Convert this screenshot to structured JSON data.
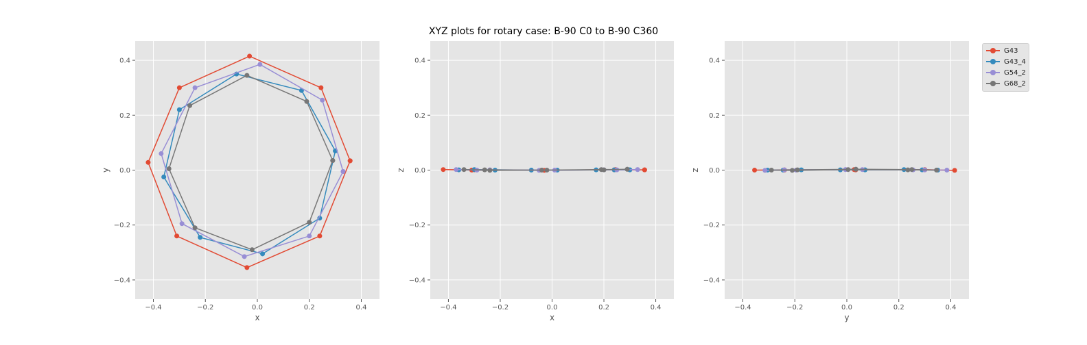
{
  "suptitle": "XYZ plots for rotary case: B-90 C0 to B-90 C360",
  "colors": {
    "G43": "#E24A33",
    "G43_4": "#348ABD",
    "G54_2": "#988ED5",
    "G68_2": "#777777"
  },
  "legend": {
    "placement": "upper right, outside plots",
    "items": [
      {
        "label": "G43",
        "color": "#E24A33"
      },
      {
        "label": "G43_4",
        "color": "#348ABD"
      },
      {
        "label": "G54_2",
        "color": "#988ED5"
      },
      {
        "label": "G68_2",
        "color": "#777777"
      }
    ]
  },
  "chart_data": [
    {
      "type": "line",
      "xlabel": "x",
      "ylabel": "y",
      "xlim": [
        -0.47,
        0.47
      ],
      "ylim": [
        -0.47,
        0.47
      ],
      "xticks": [
        "-0.4",
        "-0.2",
        "0.0",
        "0.2",
        "0.4"
      ],
      "yticks": [
        "-0.4",
        "-0.2",
        "0.0",
        "0.2",
        "0.4"
      ],
      "grid": true,
      "series": [
        {
          "name": "G43",
          "x": [
            0.357,
            0.245,
            -0.03,
            -0.3,
            -0.42,
            -0.31,
            -0.04,
            0.24,
            0.357
          ],
          "y": [
            0.034,
            0.3,
            0.415,
            0.3,
            0.028,
            -0.24,
            -0.355,
            -0.24,
            0.034
          ]
        },
        {
          "name": "G43_4",
          "x": [
            0.3,
            0.17,
            -0.08,
            -0.3,
            -0.36,
            -0.22,
            0.02,
            0.24,
            0.3
          ],
          "y": [
            0.07,
            0.29,
            0.35,
            0.22,
            -0.025,
            -0.245,
            -0.305,
            -0.175,
            0.07
          ]
        },
        {
          "name": "G54_2",
          "x": [
            0.33,
            0.25,
            0.01,
            -0.24,
            -0.37,
            -0.29,
            -0.05,
            0.2,
            0.33
          ],
          "y": [
            -0.005,
            0.255,
            0.385,
            0.3,
            0.06,
            -0.195,
            -0.315,
            -0.24,
            -0.005
          ]
        },
        {
          "name": "G68_2",
          "x": [
            0.29,
            0.19,
            -0.04,
            -0.26,
            -0.34,
            -0.24,
            -0.02,
            0.2,
            0.29
          ],
          "y": [
            0.035,
            0.25,
            0.345,
            0.235,
            0.005,
            -0.21,
            -0.29,
            -0.19,
            0.035
          ]
        }
      ]
    },
    {
      "type": "line",
      "xlabel": "x",
      "ylabel": "z",
      "xlim": [
        -0.47,
        0.47
      ],
      "ylim": [
        -0.47,
        0.47
      ],
      "xticks": [
        "-0.4",
        "-0.2",
        "0.0",
        "0.2",
        "0.4"
      ],
      "yticks": [
        "-0.4",
        "-0.2",
        "0.0",
        "0.2",
        "0.4"
      ],
      "grid": true,
      "series": [
        {
          "name": "G43",
          "x": [
            0.357,
            0.245,
            -0.03,
            -0.3,
            -0.42,
            -0.31,
            -0.04,
            0.24,
            0.357
          ],
          "y": [
            0.001,
            0.002,
            -0.001,
            0.001,
            0.002,
            0.0,
            0.0,
            0.001,
            0.001
          ]
        },
        {
          "name": "G43_4",
          "x": [
            0.3,
            0.17,
            -0.08,
            -0.3,
            -0.36,
            -0.22,
            0.02,
            0.24,
            0.3
          ],
          "y": [
            0.001,
            0.001,
            0.0,
            0.002,
            0.001,
            0.0,
            0.0,
            0.001,
            0.001
          ]
        },
        {
          "name": "G54_2",
          "x": [
            0.33,
            0.25,
            0.01,
            -0.24,
            -0.37,
            -0.29,
            -0.05,
            0.2,
            0.33
          ],
          "y": [
            0.002,
            0.001,
            0.0,
            0.001,
            0.002,
            0.0,
            -0.001,
            0.001,
            0.002
          ]
        },
        {
          "name": "G68_2",
          "x": [
            0.29,
            0.19,
            -0.04,
            -0.26,
            -0.34,
            -0.24,
            -0.02,
            0.2,
            0.29
          ],
          "y": [
            0.003,
            0.002,
            0.0,
            0.001,
            0.002,
            -0.001,
            0.0,
            0.001,
            0.003
          ]
        }
      ]
    },
    {
      "type": "line",
      "xlabel": "y",
      "ylabel": "z",
      "xlim": [
        -0.47,
        0.47
      ],
      "ylim": [
        -0.47,
        0.47
      ],
      "xticks": [
        "-0.4",
        "-0.2",
        "0.0",
        "0.2",
        "0.4"
      ],
      "yticks": [
        "-0.4",
        "-0.2",
        "0.0",
        "0.2",
        "0.4"
      ],
      "grid": true,
      "series": [
        {
          "name": "G43",
          "x": [
            0.034,
            0.3,
            0.415,
            0.3,
            0.028,
            -0.24,
            -0.355,
            -0.24,
            0.034
          ],
          "y": [
            0.001,
            0.002,
            -0.001,
            0.001,
            0.002,
            0.0,
            0.0,
            0.001,
            0.001
          ]
        },
        {
          "name": "G43_4",
          "x": [
            0.07,
            0.29,
            0.35,
            0.22,
            -0.025,
            -0.245,
            -0.305,
            -0.175,
            0.07
          ],
          "y": [
            0.001,
            0.001,
            0.0,
            0.002,
            0.001,
            0.0,
            0.0,
            0.001,
            0.001
          ]
        },
        {
          "name": "G54_2",
          "x": [
            -0.005,
            0.255,
            0.385,
            0.3,
            0.06,
            -0.195,
            -0.315,
            -0.24,
            -0.005
          ],
          "y": [
            0.002,
            0.001,
            0.0,
            0.001,
            0.002,
            0.0,
            -0.001,
            0.001,
            0.002
          ]
        },
        {
          "name": "G68_2",
          "x": [
            0.035,
            0.25,
            0.345,
            0.235,
            0.005,
            -0.21,
            -0.29,
            -0.19,
            0.035
          ],
          "y": [
            0.003,
            0.002,
            0.0,
            0.001,
            0.002,
            -0.001,
            0.0,
            0.001,
            0.003
          ]
        }
      ]
    }
  ]
}
